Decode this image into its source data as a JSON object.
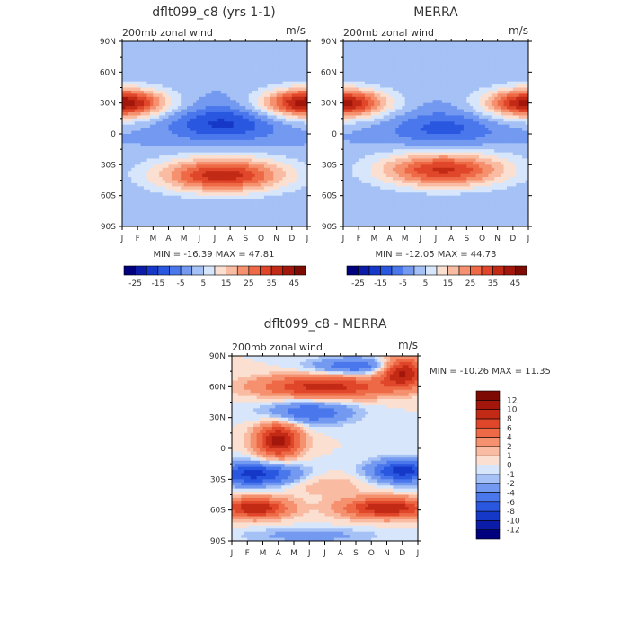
{
  "chart_data": [
    {
      "type": "heatmap",
      "title": "dflt099_c8 (yrs 1-1)",
      "subtitle": "200mb zonal wind",
      "units": "m/s",
      "stats": "MIN = -16.39 MAX =  47.81",
      "x_ticks": [
        "J",
        "F",
        "M",
        "A",
        "M",
        "J",
        "J",
        "A",
        "S",
        "O",
        "N",
        "D",
        "J"
      ],
      "y_ticks": [
        "90N",
        "60N",
        "30N",
        "0",
        "30S",
        "60S",
        "90S"
      ],
      "y_range": [
        -90,
        90
      ],
      "x_range": [
        1,
        13
      ],
      "levels": [
        -25,
        -20,
        -15,
        -10,
        -5,
        0,
        5,
        10,
        15,
        20,
        25,
        30,
        35,
        40,
        45
      ],
      "colorbar_labels": [
        "-25",
        "-15",
        "-5",
        "5",
        "15",
        "25",
        "35",
        "45"
      ],
      "colorbar_label_levels": [
        -25,
        -15,
        -5,
        5,
        15,
        25,
        35,
        45
      ],
      "colors": [
        "#00007f",
        "#0a1ca8",
        "#1638c8",
        "#2a57e0",
        "#4a78ec",
        "#7399f0",
        "#a5c1f5",
        "#d7e6fb",
        "#fbe0d2",
        "#f9bca3",
        "#f5916e",
        "#ee6a47",
        "#e0462a",
        "#c22a16",
        "#a3160b",
        "#7e0a04"
      ],
      "fields": [
        {
          "lat": 30,
          "lat_width": 10,
          "month": 1,
          "month_width": 2,
          "amplitude": 45
        },
        {
          "lat": 30,
          "lat_width": 10,
          "month": 13,
          "month_width": 2,
          "amplitude": 45
        },
        {
          "lat": -40,
          "lat_width": 12,
          "month": 7.5,
          "month_width": 3,
          "amplitude": 38
        },
        {
          "lat": 10,
          "lat_width": 12,
          "month": 7.5,
          "month_width": 2.5,
          "amplitude": -16
        }
      ]
    },
    {
      "type": "heatmap",
      "title": "MERRA",
      "subtitle": "200mb zonal wind",
      "units": "m/s",
      "stats": "MIN = -12.05 MAX =  44.73",
      "x_ticks": [
        "J",
        "F",
        "M",
        "A",
        "M",
        "J",
        "J",
        "A",
        "S",
        "O",
        "N",
        "D",
        "J"
      ],
      "y_ticks": [
        "90N",
        "60N",
        "30N",
        "0",
        "30S",
        "60S",
        "90S"
      ],
      "y_range": [
        -90,
        90
      ],
      "x_range": [
        1,
        13
      ],
      "levels": [
        -25,
        -20,
        -15,
        -10,
        -5,
        0,
        5,
        10,
        15,
        20,
        25,
        30,
        35,
        40,
        45
      ],
      "colorbar_labels": [
        "-25",
        "-15",
        "-5",
        "5",
        "15",
        "25",
        "35",
        "45"
      ],
      "colorbar_label_levels": [
        -25,
        -15,
        -5,
        5,
        15,
        25,
        35,
        45
      ],
      "colors": [
        "#00007f",
        "#0a1ca8",
        "#1638c8",
        "#2a57e0",
        "#4a78ec",
        "#7399f0",
        "#a5c1f5",
        "#d7e6fb",
        "#fbe0d2",
        "#f9bca3",
        "#f5916e",
        "#ee6a47",
        "#e0462a",
        "#c22a16",
        "#a3160b",
        "#7e0a04"
      ],
      "fields": [
        {
          "lat": 30,
          "lat_width": 10,
          "month": 1,
          "month_width": 2,
          "amplitude": 42
        },
        {
          "lat": 30,
          "lat_width": 10,
          "month": 13,
          "month_width": 2,
          "amplitude": 42
        },
        {
          "lat": -35,
          "lat_width": 12,
          "month": 7.5,
          "month_width": 3,
          "amplitude": 36
        },
        {
          "lat": 5,
          "lat_width": 12,
          "month": 7.5,
          "month_width": 2.5,
          "amplitude": -12
        }
      ]
    },
    {
      "type": "heatmap",
      "title": "dflt099_c8 - MERRA",
      "subtitle": "200mb zonal wind",
      "units": "m/s",
      "stats": "MIN = -10.26 MAX =  11.35",
      "x_ticks": [
        "J",
        "F",
        "M",
        "A",
        "M",
        "J",
        "J",
        "A",
        "S",
        "O",
        "N",
        "D",
        "J"
      ],
      "y_ticks": [
        "90N",
        "60N",
        "30N",
        "0",
        "30S",
        "60S",
        "90S"
      ],
      "y_range": [
        -90,
        90
      ],
      "x_range": [
        1,
        13
      ],
      "levels": [
        -12,
        -10,
        -8,
        -6,
        -4,
        -2,
        -1,
        0,
        1,
        2,
        4,
        6,
        8,
        10,
        12
      ],
      "colorbar_labels": [
        "-12",
        "-10",
        "-8",
        "-6",
        "-4",
        "-2",
        "-1",
        "0",
        "1",
        "2",
        "4",
        "6",
        "8",
        "10",
        "12"
      ],
      "colorbar_label_levels": [
        -12,
        -10,
        -8,
        -6,
        -4,
        -2,
        -1,
        0,
        1,
        2,
        4,
        6,
        8,
        10,
        12
      ],
      "colors": [
        "#00007f",
        "#0a1ca8",
        "#1638c8",
        "#2a57e0",
        "#4a78ec",
        "#7399f0",
        "#a5c1f5",
        "#d7e6fb",
        "#fbe0d2",
        "#f9bca3",
        "#f5916e",
        "#ee6a47",
        "#e0462a",
        "#c22a16",
        "#a3160b",
        "#7e0a04"
      ],
      "fields": [
        {
          "lat": 60,
          "lat_width": 8,
          "month": 7,
          "month_width": 3,
          "amplitude": 9
        },
        {
          "lat": 75,
          "lat_width": 10,
          "month": 12,
          "month_width": 1,
          "amplitude": 11
        },
        {
          "lat": 8,
          "lat_width": 12,
          "month": 4,
          "month_width": 1,
          "amplitude": 11
        },
        {
          "lat": -58,
          "lat_width": 7,
          "month": 2.5,
          "month_width": 1.5,
          "amplitude": 10
        },
        {
          "lat": -58,
          "lat_width": 7,
          "month": 11,
          "month_width": 2,
          "amplitude": 10
        },
        {
          "lat": -25,
          "lat_width": 8,
          "month": 2.5,
          "month_width": 2,
          "amplitude": -9
        },
        {
          "lat": -22,
          "lat_width": 8,
          "month": 12,
          "month_width": 1.5,
          "amplitude": -9
        },
        {
          "lat": 35,
          "lat_width": 8,
          "month": 6,
          "month_width": 2,
          "amplitude": -6
        },
        {
          "lat": 80,
          "lat_width": 6,
          "month": 9,
          "month_width": 2,
          "amplitude": -6
        },
        {
          "lat": -85,
          "lat_width": 5,
          "month": 6,
          "month_width": 3,
          "amplitude": -3
        },
        {
          "lat": -35,
          "lat_width": 8,
          "month": 7,
          "month_width": 2,
          "amplitude": 2
        }
      ]
    }
  ]
}
